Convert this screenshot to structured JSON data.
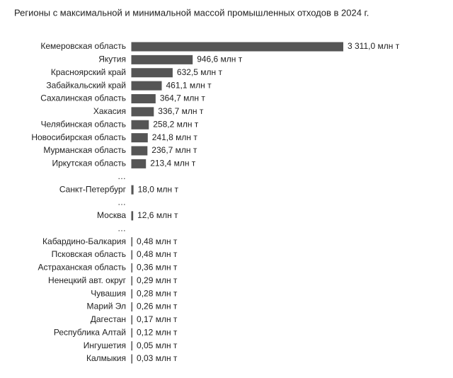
{
  "chart_data": {
    "type": "bar",
    "orientation": "horizontal",
    "title": "Регионы с максимальной и минимальной массой промышленных отходов в 2024 г.",
    "color": "#555555",
    "categories": [
      "Кемеровская область",
      "Якутия",
      "Красноярский край",
      "Забайкальский край",
      "Сахалинская область",
      "Хакасия",
      "Челябинская область",
      "Новосибирская область",
      "Мурманская область",
      "Иркутская область",
      "…",
      "Санкт-Петербург",
      "…",
      "Москва",
      "…",
      "Кабардино-Балкария",
      "Псковская область",
      "Астраханская область",
      "Ненецкий авт. округ",
      "Чувашия",
      "Марий Эл",
      "Дагестан",
      "Республика Алтай",
      "Ингушетия",
      "Калмыкия"
    ],
    "values": [
      3311.0,
      946.6,
      632.5,
      461.1,
      364.7,
      336.7,
      258.2,
      241.8,
      236.7,
      213.4,
      null,
      18.0,
      null,
      12.6,
      null,
      0.48,
      0.48,
      0.36,
      0.29,
      0.28,
      0.26,
      0.17,
      0.12,
      0.05,
      0.03
    ],
    "value_labels": [
      "3 311,0 млн т",
      "946,6 млн т",
      "632,5 млн т",
      "461,1 млн т",
      "364,7 млн т",
      "336,7 млн т",
      "258,2 млн т",
      "241,8 млн т",
      "236,7 млн т",
      "213,4 млн т",
      null,
      "18,0 млн т",
      null,
      "12,6 млн т",
      null,
      "0,48 млн т",
      "0,48 млн т",
      "0,36 млн т",
      "0,29 млн т",
      "0,28 млн т",
      "0,26 млн т",
      "0,17 млн т",
      "0,12 млн т",
      "0,05 млн т",
      "0,03 млн т"
    ]
  }
}
